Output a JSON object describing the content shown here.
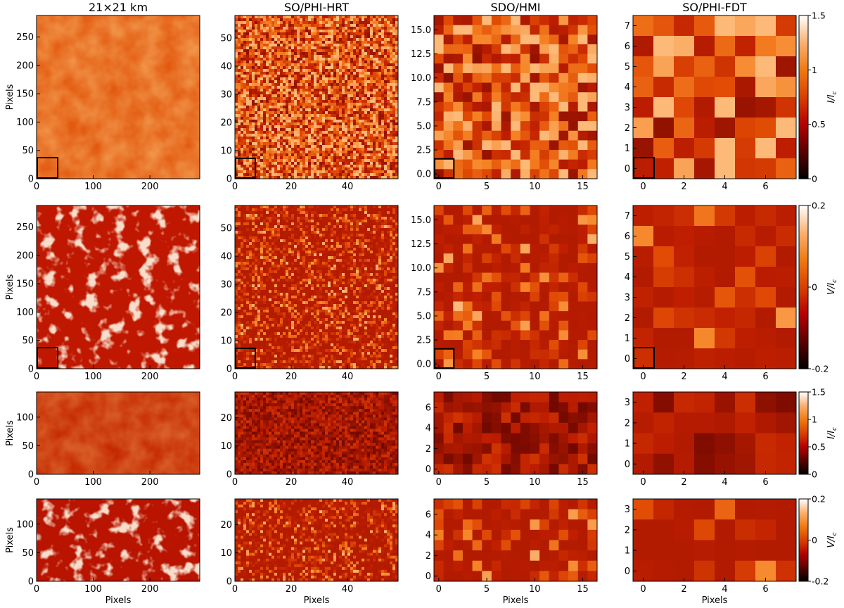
{
  "figure": {
    "columns": [
      {
        "title": "21×21 km",
        "x_ticks": [
          "0",
          "100",
          "200"
        ]
      },
      {
        "title": "SO/PHI-HRT",
        "x_ticks": [
          "0",
          "20",
          "40"
        ]
      },
      {
        "title": "SDO/HMI",
        "x_ticks": [
          "0",
          "5",
          "10",
          "15"
        ]
      },
      {
        "title": "SO/PHI-FDT",
        "x_ticks": [
          "0",
          "2",
          "4",
          "6"
        ]
      }
    ],
    "x_label": "Pixels",
    "y_label": "Pixels",
    "y_ticks": [
      [
        [
          "0",
          "50",
          "100",
          "150",
          "200",
          "250"
        ],
        [
          "0",
          "10",
          "20",
          "30",
          "40",
          "50"
        ],
        [
          "0.0",
          "2.5",
          "5.0",
          "7.5",
          "10.0",
          "12.5",
          "15.0"
        ],
        [
          "0",
          "1",
          "2",
          "3",
          "4",
          "5",
          "6",
          "7"
        ]
      ],
      [
        [
          "0",
          "50",
          "100",
          "150",
          "200",
          "250"
        ],
        [
          "0",
          "10",
          "20",
          "30",
          "40",
          "50"
        ],
        [
          "0.0",
          "2.5",
          "5.0",
          "7.5",
          "10.0",
          "12.5",
          "15.0"
        ],
        [
          "0",
          "1",
          "2",
          "3",
          "4",
          "5",
          "6",
          "7"
        ]
      ],
      [
        [
          "0",
          "50",
          "100"
        ],
        [
          "0",
          "10",
          "20"
        ],
        [
          "0",
          "2",
          "4",
          "6"
        ],
        [
          "0",
          "1",
          "2",
          "3"
        ]
      ],
      [
        [
          "0",
          "50",
          "100"
        ],
        [
          "0",
          "10",
          "20"
        ],
        [
          "0",
          "2",
          "4",
          "6"
        ],
        [
          "0",
          "1",
          "2",
          "3"
        ]
      ]
    ],
    "colorbars": [
      {
        "label": "I/I",
        "label_sub": "c",
        "ticks": [
          "1.5",
          "1",
          "0.5",
          "0"
        ]
      },
      {
        "label": "V/I",
        "label_sub": "c",
        "ticks": [
          "0.2",
          "0",
          "-0.2"
        ]
      },
      {
        "label": "I/I",
        "label_sub": "c",
        "ticks": [
          "1.5",
          "1",
          "0.5",
          "0"
        ]
      },
      {
        "label": "V/I",
        "label_sub": "c",
        "ticks": [
          "0.2",
          "0",
          "-0.2"
        ]
      }
    ],
    "colormap": [
      "#000000",
      "#5a0000",
      "#b40000",
      "#d94000",
      "#f07a10",
      "#fbb070",
      "#ffffff"
    ]
  }
}
